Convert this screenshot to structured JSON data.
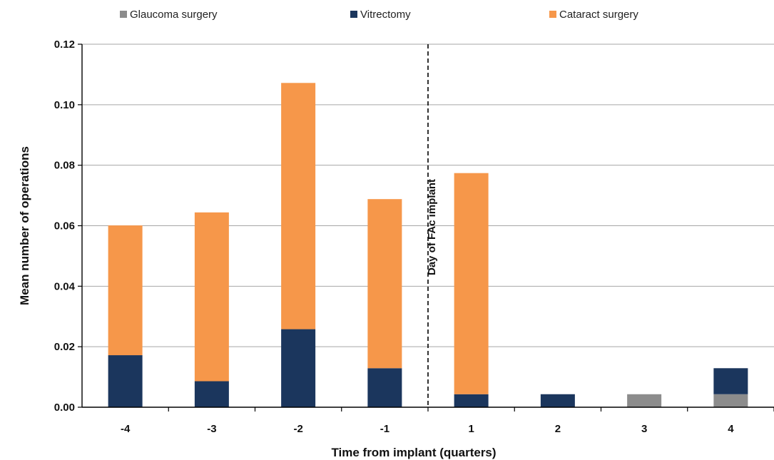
{
  "chart_data": {
    "type": "bar",
    "stacked": true,
    "categories": [
      "-4",
      "-3",
      "-2",
      "-1",
      "1",
      "2",
      "3",
      "4"
    ],
    "series": [
      {
        "name": "Glaucoma surgery",
        "color": "#8c8c8c",
        "values": [
          0,
          0,
          0,
          0,
          0,
          0,
          0.0043,
          0.0043
        ]
      },
      {
        "name": "Vitrectomy",
        "color": "#1b365d",
        "values": [
          0.0172,
          0.0086,
          0.0258,
          0.0129,
          0.0043,
          0.0043,
          0,
          0.0086
        ]
      },
      {
        "name": "Cataract surgery",
        "color": "#f6974a",
        "values": [
          0.0429,
          0.0558,
          0.0814,
          0.0559,
          0.0731,
          0,
          0,
          0
        ]
      }
    ],
    "xlabel": "Time from implant (quarters)",
    "ylabel": "Mean number of operations",
    "ylim": [
      0,
      0.12
    ],
    "yticks": [
      "0.00",
      "0.02",
      "0.04",
      "0.06",
      "0.08",
      "0.10",
      "0.12"
    ],
    "grid": true,
    "legend_position": "top",
    "annotation": {
      "text": "Day of FAc implant",
      "between": [
        "-1",
        "1"
      ]
    }
  }
}
